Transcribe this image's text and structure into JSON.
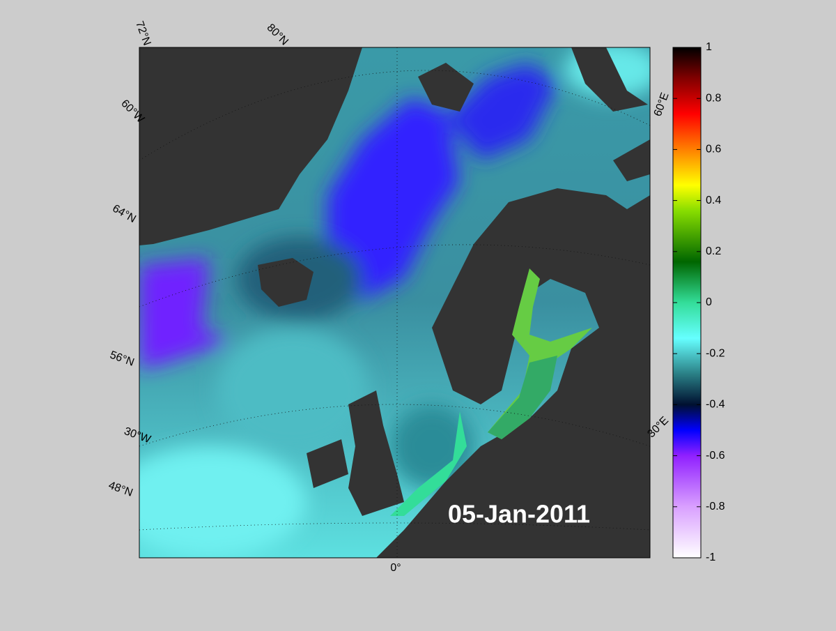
{
  "map": {
    "date": "05-Jan-2011",
    "graticule_labels": [
      "72°N",
      "80°N",
      "60°W",
      "64°N",
      "56°N",
      "30°W",
      "48°N",
      "0°",
      "30°E",
      "60°E"
    ]
  },
  "colorbar": {
    "ylim": [
      -1,
      1
    ],
    "yticks": [
      -1,
      -0.8,
      -0.6,
      -0.4,
      -0.2,
      0,
      0.2,
      0.4,
      0.6,
      0.8,
      1
    ]
  }
}
